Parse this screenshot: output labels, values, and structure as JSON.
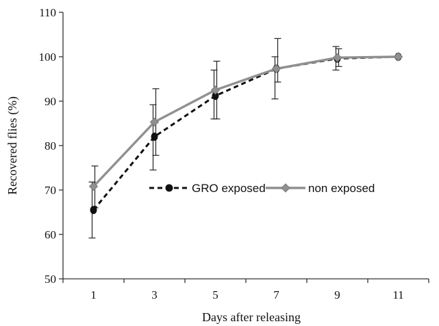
{
  "chart_data": {
    "type": "line",
    "title": "",
    "xlabel": "Days after releasing",
    "ylabel": "Recovered flies (%)",
    "xlim": [
      0,
      12
    ],
    "ylim": [
      50,
      110
    ],
    "x_ticks": [
      1,
      3,
      5,
      7,
      9,
      11
    ],
    "y_ticks": [
      50,
      60,
      70,
      80,
      90,
      100,
      110
    ],
    "grid": false,
    "legend_position": "center",
    "series": [
      {
        "name": "GRO exposed",
        "line_style": "dashed",
        "marker": "circle",
        "color": "#111111",
        "x": [
          1,
          3,
          5,
          7,
          9,
          11
        ],
        "y": [
          65.5,
          82.0,
          91.2,
          97.3,
          99.6,
          100.0
        ],
        "err_low": [
          59.2,
          74.5,
          86.0,
          90.5,
          97.0,
          100.0
        ],
        "err_high": [
          71.8,
          89.2,
          97.0,
          100.0,
          102.3,
          100.0
        ]
      },
      {
        "name": "non exposed",
        "line_style": "solid",
        "marker": "diamond",
        "color": "#909090",
        "x": [
          1,
          3,
          5,
          7,
          9,
          11
        ],
        "y": [
          70.8,
          85.3,
          92.5,
          97.3,
          99.8,
          100.0
        ],
        "err_low": [
          66.0,
          77.8,
          86.0,
          94.3,
          97.8,
          100.0
        ],
        "err_high": [
          75.4,
          92.8,
          99.0,
          104.1,
          101.8,
          100.0
        ]
      }
    ]
  }
}
